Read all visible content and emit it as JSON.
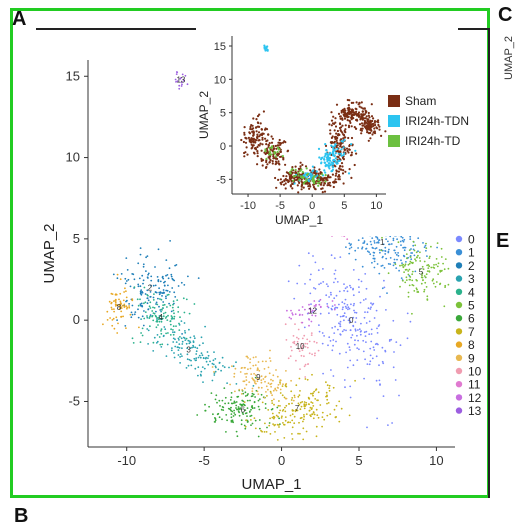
{
  "panels": {
    "a": "A",
    "b": "B",
    "c": "C",
    "e": "E",
    "side_label": "UMAP_2"
  },
  "colors": {
    "frame": "#22cc22",
    "clusters": [
      "#7b89ff",
      "#3a8fd6",
      "#1f7fb8",
      "#2aa3b0",
      "#2bb28c",
      "#7cc23a",
      "#3aa83a",
      "#c8b41c",
      "#e8a824",
      "#e8b850",
      "#f09cb0",
      "#e07ad0",
      "#c86ee0",
      "#9c5ee0"
    ],
    "inset": {
      "Sham": "#7a2e14",
      "IRI24h-TDN": "#2cc4f0",
      "IRI24h-TD": "#6cc040"
    }
  },
  "chart_data": [
    {
      "type": "scatter",
      "xlabel": "UMAP_1",
      "ylabel": "UMAP_2",
      "xlim": [
        -12.5,
        11.2
      ],
      "ylim": [
        -7.8,
        16
      ],
      "xticks": [
        -10,
        -5,
        0,
        5,
        10
      ],
      "yticks": [
        -5,
        0,
        5,
        10,
        15
      ],
      "legend": [
        "0",
        "1",
        "2",
        "3",
        "4",
        "5",
        "6",
        "7",
        "8",
        "9",
        "10",
        "11",
        "12",
        "13"
      ],
      "legend_position": "right",
      "clusters": [
        {
          "label": "0",
          "x": 4.5,
          "y": 0.0
        },
        {
          "label": "1",
          "x": 6.5,
          "y": 4.8
        },
        {
          "label": "2",
          "x": -8.5,
          "y": 2.0
        },
        {
          "label": "3",
          "x": -6.0,
          "y": -1.8
        },
        {
          "label": "4",
          "x": -7.8,
          "y": 0.2
        },
        {
          "label": "5",
          "x": 9.0,
          "y": 3.0
        },
        {
          "label": "6",
          "x": -2.5,
          "y": -5.5
        },
        {
          "label": "7",
          "x": 1.0,
          "y": -5.4
        },
        {
          "label": "8",
          "x": -10.5,
          "y": 0.8
        },
        {
          "label": "9",
          "x": -1.5,
          "y": -3.5
        },
        {
          "label": "10",
          "x": 1.2,
          "y": -1.6
        },
        {
          "label": "11",
          "x": 3.8,
          "y": 5.5
        },
        {
          "label": "12",
          "x": 2.0,
          "y": 0.6
        },
        {
          "label": "13",
          "x": -6.5,
          "y": 14.8
        }
      ]
    },
    {
      "type": "scatter",
      "xlabel": "UMAP_1",
      "ylabel": "UMAP_2",
      "xlim": [
        -12.5,
        11.5
      ],
      "ylim": [
        -7.2,
        16.5
      ],
      "xticks": [
        -10,
        -5,
        0,
        5,
        10
      ],
      "yticks": [
        -5,
        0,
        5,
        10,
        15
      ],
      "legend": [
        "Sham",
        "IRI24h-TDN",
        "IRI24h-TD"
      ],
      "legend_position": "right",
      "series": [
        {
          "name": "Sham",
          "regions": [
            {
              "x": -8.8,
              "y": 1.2
            },
            {
              "x": -6,
              "y": -1.2
            },
            {
              "x": -2.5,
              "y": -4.8
            },
            {
              "x": 1,
              "y": -5
            },
            {
              "x": 4.5,
              "y": 0
            },
            {
              "x": 6.5,
              "y": 4.8
            },
            {
              "x": 9,
              "y": 3
            }
          ]
        },
        {
          "name": "IRI24h-TDN",
          "regions": [
            {
              "x": 3.5,
              "y": -1.2
            },
            {
              "x": 2.5,
              "y": -2.5
            },
            {
              "x": -7.2,
              "y": 14.6
            },
            {
              "x": -0.5,
              "y": -4.5
            }
          ]
        },
        {
          "name": "IRI24h-TD",
          "regions": [
            {
              "x": -2,
              "y": -4.2
            },
            {
              "x": 0.5,
              "y": -5.2
            },
            {
              "x": -6,
              "y": -0.8
            }
          ]
        }
      ]
    }
  ]
}
